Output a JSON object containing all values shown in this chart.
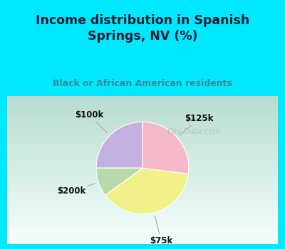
{
  "title": "Income distribution in Spanish\nSprings, NV (%)",
  "subtitle": "Black or African American residents",
  "slices": [
    25.0,
    10.0,
    38.0,
    27.0
  ],
  "labels": [
    "$100k",
    "$200k",
    "$75k",
    "$125k"
  ],
  "colors": [
    "#c2b0e0",
    "#b8d9a8",
    "#f2f28a",
    "#f4b8c8"
  ],
  "startangle": 90,
  "title_color": "#1a1a2e",
  "subtitle_color": "#3a8a9a",
  "watermark": "City-Data.com",
  "border_color": "#00e8ff",
  "border_width": 10,
  "chart_bg_colors": [
    "#f0faf8",
    "#c8e8d8"
  ],
  "label_fontsize": 8.5,
  "label_color": "#111111"
}
